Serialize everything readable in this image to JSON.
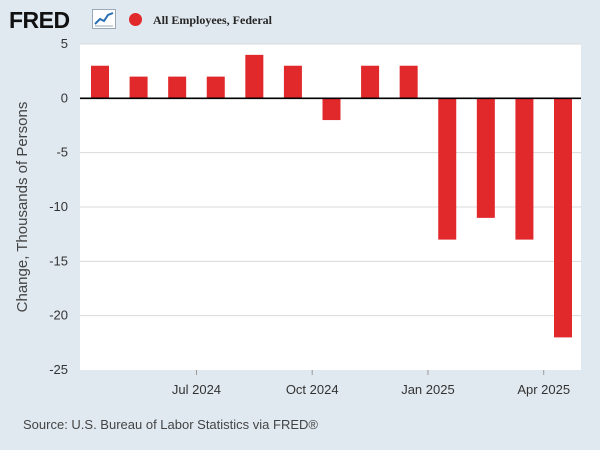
{
  "header": {
    "logo_text": "FRED",
    "logo_icon": "line-chart-icon",
    "series_label": "All Employees, Federal",
    "series_color": "#e1282b"
  },
  "source": {
    "text": "Source: U.S. Bureau of Labor Statistics via FRED®"
  },
  "chart_data": {
    "type": "bar",
    "title": "All Employees, Federal",
    "xlabel": "",
    "ylabel": "Change, Thousands of Persons",
    "ylim": [
      -25,
      5
    ],
    "yticks": [
      5,
      0,
      -5,
      -10,
      -15,
      -20,
      -25
    ],
    "ytick_labels": [
      "5",
      "0",
      "-5",
      "-10",
      "-15",
      "-20",
      "-25"
    ],
    "categories": [
      "2024-05",
      "2024-06",
      "2024-07",
      "2024-08",
      "2024-09",
      "2024-10",
      "2024-11",
      "2024-12",
      "2025-01",
      "2025-02",
      "2025-03",
      "2025-04",
      "2025-05"
    ],
    "values": [
      3,
      2,
      2,
      2,
      4,
      3,
      -2,
      3,
      3,
      -13,
      -11,
      -13,
      -22
    ],
    "xtick_labels": [
      {
        "label": "Jul 2024",
        "index": 2
      },
      {
        "label": "Oct 2024",
        "index": 5
      },
      {
        "label": "Jan 2025",
        "index": 8
      },
      {
        "label": "Apr 2025",
        "index": 11
      }
    ],
    "grid": true,
    "bar_color": "#e1282b",
    "background": "#ffffff",
    "outer_background": "#e1e9f0"
  }
}
